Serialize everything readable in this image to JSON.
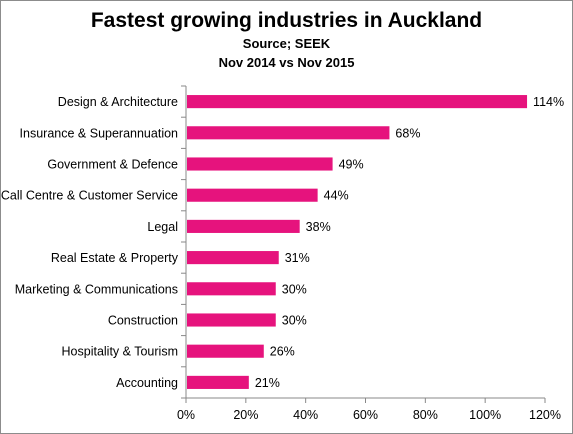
{
  "chart_data": {
    "type": "bar",
    "orientation": "horizontal",
    "title": "Fastest growing industries in Auckland",
    "subtitle_lines": [
      "Source; SEEK",
      "Nov 2014 vs Nov 2015"
    ],
    "categories": [
      "Design & Architecture",
      "Insurance & Superannuation",
      "Government & Defence",
      "Call Centre & Customer Service",
      "Legal",
      "Real Estate & Property",
      "Marketing & Communications",
      "Construction",
      "Hospitality & Tourism",
      "Accounting"
    ],
    "values": [
      114,
      68,
      49,
      44,
      38,
      31,
      30,
      30,
      26,
      21
    ],
    "value_labels": [
      "114%",
      "68%",
      "49%",
      "44%",
      "38%",
      "31%",
      "30%",
      "30%",
      "26%",
      "21%"
    ],
    "xlim": [
      0,
      120
    ],
    "x_ticks": [
      0,
      20,
      40,
      60,
      80,
      100,
      120
    ],
    "x_tick_labels": [
      "0%",
      "20%",
      "40%",
      "60%",
      "80%",
      "100%",
      "120%"
    ],
    "bar_color": "#e6137d",
    "grid": false,
    "legend": "none"
  }
}
